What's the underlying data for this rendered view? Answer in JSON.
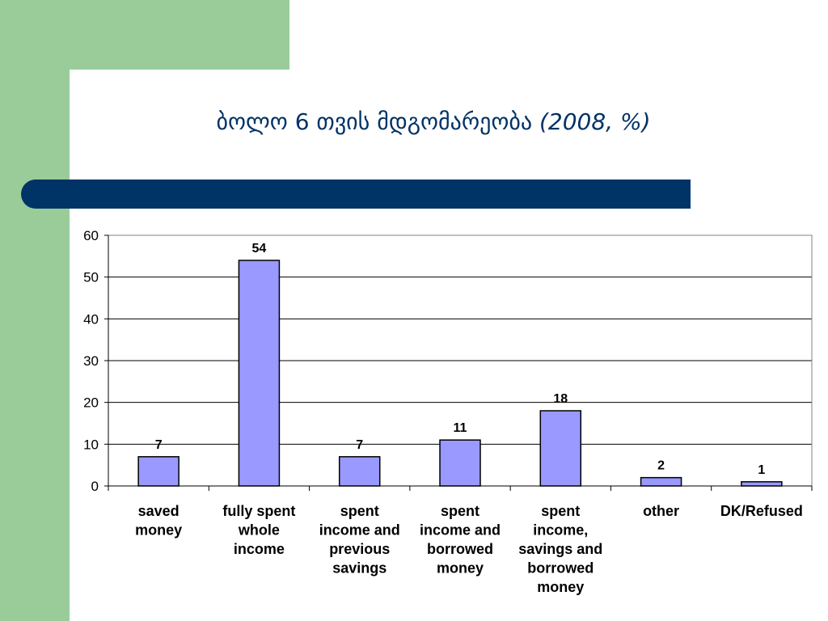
{
  "slide": {
    "title_main": "ბოლო 6 თვის მდგომარეობა",
    "title_sub": "(2008, %)"
  },
  "colors": {
    "bar_fill": "#9999ff",
    "accent_bar": "#003366",
    "green_band": "#99cc99"
  },
  "chart_data": {
    "type": "bar",
    "categories": [
      [
        "saved",
        "money"
      ],
      [
        "fully spent",
        "whole",
        "income"
      ],
      [
        "spent",
        "income and",
        "previous",
        "savings"
      ],
      [
        "spent",
        "income and",
        "borrowed",
        "money"
      ],
      [
        "spent",
        "income,",
        "savings and",
        "borrowed",
        "money"
      ],
      [
        "other"
      ],
      [
        "DK/Refused"
      ]
    ],
    "values": [
      7,
      54,
      7,
      11,
      18,
      2,
      1
    ],
    "ylim": [
      0,
      60
    ],
    "yticks": [
      0,
      10,
      20,
      30,
      40,
      50,
      60
    ],
    "grid": true,
    "legend": false
  }
}
